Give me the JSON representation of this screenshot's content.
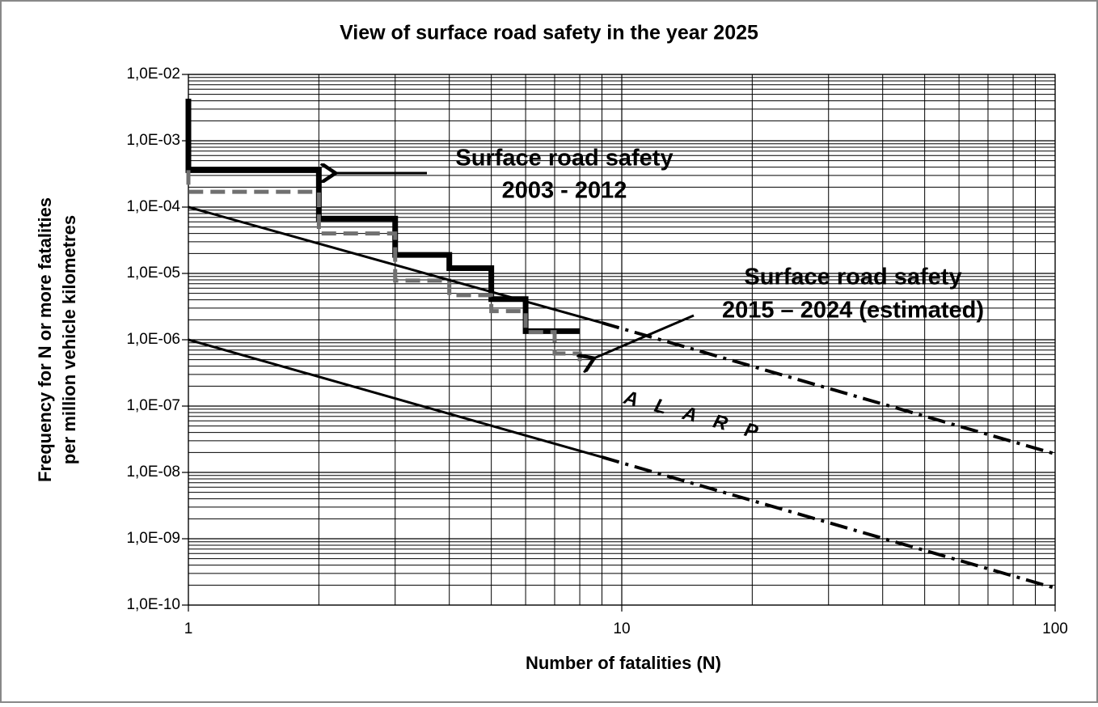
{
  "chart_data": {
    "type": "line",
    "title": "View of surface road safety in the year 2025",
    "x_label": "Number of fatalities (N)",
    "y_label": [
      "Frequency for N or more fatalities",
      "per million vehicle kilometres"
    ],
    "xscale": "log",
    "yscale": "log",
    "grid": true,
    "xlim": [
      1,
      100
    ],
    "xticks": [
      1,
      10,
      100
    ],
    "ylim": [
      1e-10,
      0.01
    ],
    "yticks": [
      {
        "value": 0.01,
        "label": "1,0E-02"
      },
      {
        "value": 0.001,
        "label": "1,0E-03"
      },
      {
        "value": 0.0001,
        "label": "1,0E-04"
      },
      {
        "value": 1e-05,
        "label": "1,0E-05"
      },
      {
        "value": 1e-06,
        "label": "1,0E-06"
      },
      {
        "value": 1e-07,
        "label": "1,0E-07"
      },
      {
        "value": 1e-08,
        "label": "1,0E-08"
      },
      {
        "value": 1e-09,
        "label": "1,0E-09"
      },
      {
        "value": 1e-10,
        "label": "1,0E-10"
      }
    ],
    "series": [
      {
        "color": "#000000",
        "width": 7,
        "dash": "none",
        "x": [
          1,
          1,
          2,
          2,
          3,
          3,
          4,
          4,
          5,
          5,
          6,
          6,
          8
        ],
        "values": [
          0.0043,
          0.00036,
          0.00036,
          6.7e-05,
          6.7e-05,
          1.9e-05,
          1.9e-05,
          1.2e-05,
          1.2e-05,
          4.1e-06,
          4.1e-06,
          1.35e-06,
          1.35e-06
        ]
      },
      {
        "color": "#707070",
        "width": 5,
        "dash": "18 9",
        "x": [
          1,
          1,
          2,
          2,
          3,
          3,
          4,
          4,
          5,
          5,
          6,
          6,
          7,
          7,
          8,
          8
        ],
        "values": [
          0.00036,
          0.00017,
          0.00017,
          4e-05,
          4e-05,
          7.8e-06,
          7.8e-06,
          4.7e-06,
          4.7e-06,
          2.7e-06,
          2.7e-06,
          1.3e-06,
          1.3e-06,
          6.2e-07,
          6.2e-07,
          4.3e-07
        ]
      },
      {
        "color": "#000000",
        "width": 3,
        "dash": "none",
        "x": [
          1,
          9
        ],
        "values": [
          0.0001,
          1.8e-06
        ]
      },
      {
        "color": "#000000",
        "width": 4,
        "dash": "22 8 4 8",
        "x": [
          9,
          100
        ],
        "values": [
          1.8e-06,
          1.9e-08
        ]
      },
      {
        "color": "#000000",
        "width": 3,
        "dash": "none",
        "x": [
          1,
          9
        ],
        "values": [
          1e-06,
          1.7e-08
        ]
      },
      {
        "color": "#000000",
        "width": 4,
        "dash": "22 8 4 8",
        "x": [
          9,
          100
        ],
        "values": [
          1.7e-08,
          1.8e-10
        ]
      }
    ],
    "annotations": [
      {
        "lines": [
          "Surface road safety",
          "2003 - 2012"
        ]
      },
      {
        "lines": [
          "Surface road safety",
          "2015 – 2024 (estimated)"
        ]
      },
      {
        "lines": [
          "A L A R P"
        ]
      }
    ]
  }
}
